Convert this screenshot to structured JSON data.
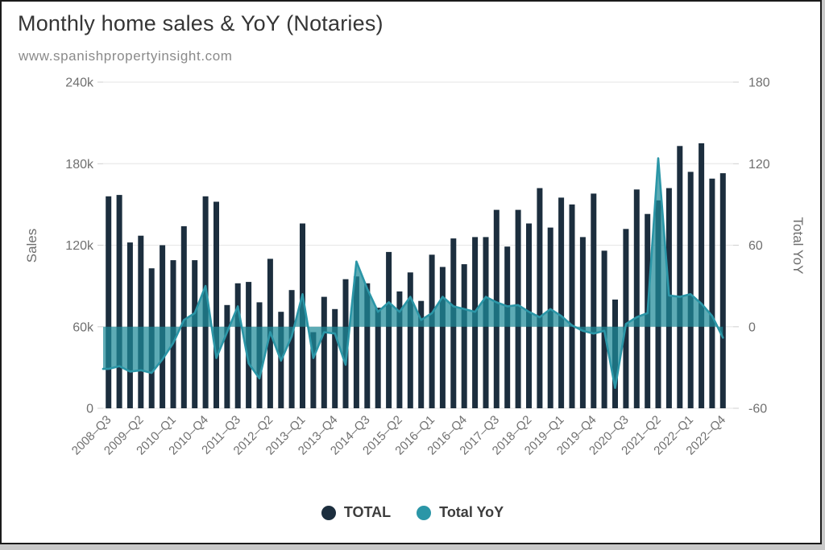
{
  "header": {
    "title": "Monthly home sales & YoY (Notaries)",
    "subtitle": "www.spanishpropertyinsight.com"
  },
  "style": {
    "bar_color": "#1c2e3e",
    "line_color": "#2b96a7",
    "area_fill": "rgba(31,139,153,0.72)",
    "grid_color": "#e6e6e6",
    "tick_color": "#cfcfcf",
    "tick_text_color": "#707070",
    "frame_border_color": "#1b1b1b"
  },
  "chart_data": {
    "type": "bar",
    "subtype": "combo column + area line, dual y-axis",
    "title": "Monthly home sales & YoY (Notaries)",
    "subtitle": "www.spanishpropertyinsight.com",
    "grid": true,
    "legend_position": "bottom",
    "x_label_every": 3,
    "categories": [
      "2008–Q3",
      "2008–Q4",
      "2009–Q1",
      "2009–Q2",
      "2009–Q3",
      "2009–Q4",
      "2010–Q1",
      "2010–Q2",
      "2010–Q3",
      "2010–Q4",
      "2011–Q1",
      "2011–Q2",
      "2011–Q3",
      "2011–Q4",
      "2012–Q1",
      "2012–Q2",
      "2012–Q3",
      "2012–Q4",
      "2013–Q1",
      "2013–Q2",
      "2013–Q3",
      "2013–Q4",
      "2014–Q1",
      "2014–Q2",
      "2014–Q3",
      "2014–Q4",
      "2015–Q1",
      "2015–Q2",
      "2015–Q3",
      "2015–Q4",
      "2016–Q1",
      "2016–Q2",
      "2016–Q3",
      "2016–Q4",
      "2017–Q1",
      "2017–Q2",
      "2017–Q3",
      "2017–Q4",
      "2018–Q1",
      "2018–Q2",
      "2018–Q3",
      "2018–Q4",
      "2019–Q1",
      "2019–Q2",
      "2019–Q3",
      "2019–Q4",
      "2020–Q1",
      "2020–Q2",
      "2020–Q3",
      "2020–Q4",
      "2021–Q1",
      "2021–Q2",
      "2021–Q3",
      "2021–Q4",
      "2022–Q1",
      "2022–Q2",
      "2022–Q3",
      "2022–Q4"
    ],
    "series": [
      {
        "name": "TOTAL",
        "type": "column",
        "y_axis": "left",
        "color": "#1c2e3e",
        "values": [
          156000,
          157000,
          122000,
          127000,
          103000,
          120000,
          109000,
          134000,
          109000,
          156000,
          152000,
          76000,
          92000,
          93000,
          78000,
          110000,
          71000,
          87000,
          136000,
          56000,
          82000,
          73000,
          95000,
          97000,
          92000,
          74000,
          115000,
          86000,
          100000,
          79000,
          113000,
          104000,
          125000,
          106000,
          126000,
          126000,
          146000,
          119000,
          146000,
          136000,
          162000,
          133000,
          155000,
          150000,
          126000,
          158000,
          116000,
          80000,
          132000,
          161000,
          143000,
          153000,
          162000,
          193000,
          174000,
          195000,
          169000,
          173000
        ]
      },
      {
        "name": "Total YoY",
        "type": "area",
        "y_axis": "right",
        "color": "#2b96a7",
        "fill": "rgba(31,139,153,0.72)",
        "values": [
          -31,
          -29,
          -33,
          -32,
          -34,
          -24,
          -12,
          5,
          10,
          30,
          -23,
          -4,
          15,
          -27,
          -38,
          -4,
          -25,
          -7,
          24,
          -23,
          -4,
          -5,
          -28,
          48,
          28,
          11,
          18,
          11,
          22,
          5,
          10,
          22,
          15,
          13,
          11,
          22,
          18,
          15,
          16,
          11,
          7,
          13,
          8,
          1,
          -3,
          -5,
          -3,
          -45,
          2,
          7,
          10,
          124,
          23,
          22,
          24,
          17,
          8,
          -8
        ]
      }
    ],
    "y_axis_left": {
      "title": "Sales",
      "min": 0,
      "max": 240000,
      "ticks": [
        {
          "value": 0,
          "label": "0"
        },
        {
          "value": 60000,
          "label": "60k"
        },
        {
          "value": 120000,
          "label": "120k"
        },
        {
          "value": 180000,
          "label": "180k"
        },
        {
          "value": 240000,
          "label": "240k"
        }
      ]
    },
    "y_axis_right": {
      "title": "Total YoY",
      "min": -60,
      "max": 180,
      "ticks": [
        {
          "value": -60,
          "label": "-60"
        },
        {
          "value": 0,
          "label": "0"
        },
        {
          "value": 60,
          "label": "60"
        },
        {
          "value": 120,
          "label": "120"
        },
        {
          "value": 180,
          "label": "180"
        }
      ]
    }
  }
}
